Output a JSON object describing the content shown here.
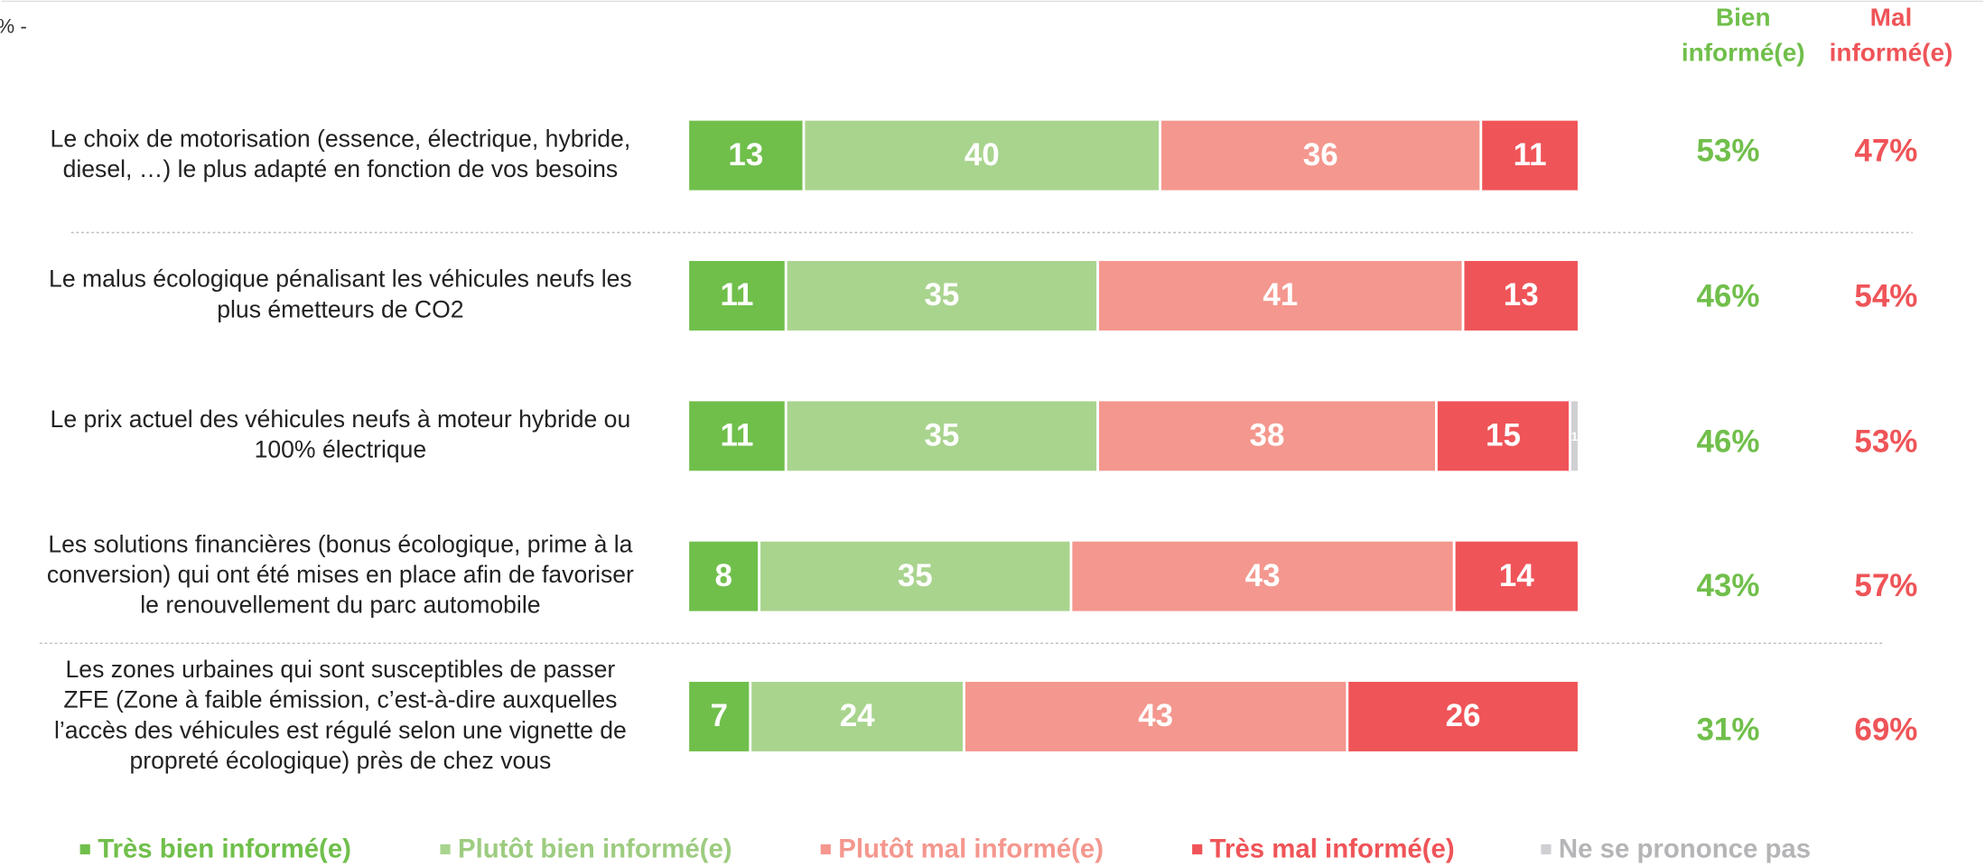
{
  "chart_data": {
    "type": "stacked_barh",
    "unit_note": "% -",
    "categories": [
      [
        "Le choix de motorisation (essence, électrique, hybride,",
        "diesel, …) le plus adapté en fonction de vos besoins"
      ],
      [
        "Le malus écologique pénalisant les véhicules neufs les",
        "plus émetteurs de CO2"
      ],
      [
        "Le prix actuel des véhicules neufs à moteur hybride ou",
        "100% électrique"
      ],
      [
        "Les solutions financières (bonus écologique, prime à la",
        "conversion) qui ont été mises en place afin de favoriser",
        "le renouvellement du parc automobile"
      ],
      [
        "Les zones urbaines qui sont susceptibles de passer",
        "ZFE (Zone à faible émission, c’est-à-dire auxquelles",
        "l’accès des véhicules est régulé selon une vignette de",
        "propreté écologique) près de chez vous"
      ]
    ],
    "xlim": [
      0,
      100
    ],
    "series": [
      {
        "name": "Très bien informé(e)",
        "color": "#70bf4b",
        "values": [
          13,
          11,
          11,
          8,
          7
        ]
      },
      {
        "name": "Plutôt bien informé(e)",
        "color": "#a9d48e",
        "values": [
          40,
          35,
          35,
          35,
          24
        ]
      },
      {
        "name": "Plutôt mal informé(e)",
        "color": "#f4978e",
        "values": [
          36,
          41,
          38,
          43,
          43
        ]
      },
      {
        "name": "Très mal informé(e)",
        "color": "#ef5458",
        "values": [
          11,
          13,
          15,
          14,
          26
        ]
      },
      {
        "name": "Ne se prononce pas",
        "color": "#d0d0d4",
        "values": [
          null,
          null,
          1,
          null,
          null
        ]
      }
    ],
    "summary_columns": [
      {
        "name": [
          "Bien",
          "informé(e)"
        ],
        "color": "#70bf4b",
        "values": [
          53,
          46,
          46,
          43,
          31
        ],
        "value_labels": [
          "53%",
          "46%",
          "46%",
          "43%",
          "31%"
        ]
      },
      {
        "name": [
          "Mal",
          "informé(e)"
        ],
        "color": "#ef5458",
        "values": [
          47,
          54,
          53,
          57,
          69
        ],
        "value_labels": [
          "47%",
          "54%",
          "53%",
          "57%",
          "69%"
        ]
      }
    ]
  }
}
